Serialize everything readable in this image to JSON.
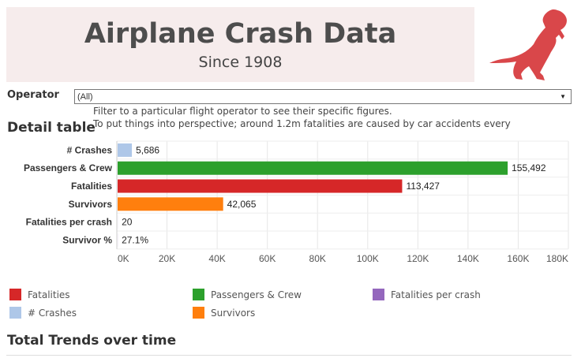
{
  "header": {
    "title": "Airplane Crash Data",
    "subtitle": "Since 1908"
  },
  "logo": {
    "icon": "dinosaur-icon",
    "color": "#d9474a"
  },
  "filter": {
    "label": "Operator",
    "selected": "(All)",
    "hint": "Filter to a particular flight operator to see their specific figures.",
    "note": "To put things into perspective; around 1.2m fatalities are caused by car accidents every"
  },
  "detail_title": "Detail table",
  "chart_data": {
    "type": "bar",
    "orientation": "horizontal",
    "title": "Detail table",
    "categories": [
      "# Crashes",
      "Passengers & Crew",
      "Fatalities",
      "Survivors",
      "Fatalities per crash",
      "Survivor %"
    ],
    "values": [
      5686,
      155492,
      113427,
      42065,
      20,
      27.1
    ],
    "labels": [
      "5,686",
      "155,492",
      "113,427",
      "42,065",
      "20",
      "27.1%"
    ],
    "colors": [
      "#aec7e8",
      "#2ca02c",
      "#d62728",
      "#ff7f0e",
      "#9467bd",
      "#9467bd"
    ],
    "xlim": [
      0,
      180000
    ],
    "ticks": [
      0,
      20000,
      40000,
      60000,
      80000,
      100000,
      120000,
      140000,
      160000,
      180000
    ],
    "tick_labels": [
      "0K",
      "20K",
      "40K",
      "60K",
      "80K",
      "100K",
      "120K",
      "140K",
      "160K",
      "180K"
    ],
    "grid": true
  },
  "legend": {
    "items": [
      {
        "label": "Fatalities",
        "color": "#d62728"
      },
      {
        "label": "Passengers & Crew",
        "color": "#2ca02c"
      },
      {
        "label": "Fatalities per crash",
        "color": "#9467bd"
      },
      {
        "label": "# Crashes",
        "color": "#aec7e8"
      },
      {
        "label": "Survivors",
        "color": "#ff7f0e"
      }
    ]
  },
  "trends_title": "Total Trends over time"
}
